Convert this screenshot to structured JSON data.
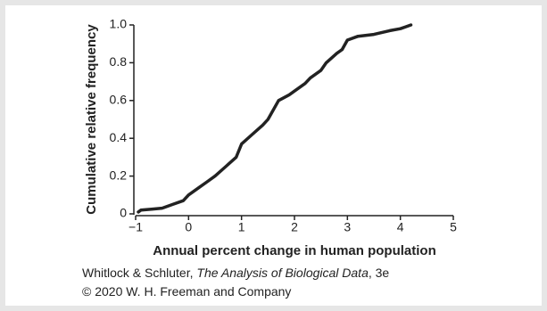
{
  "chart_data": {
    "type": "line",
    "ylabel": "Cumulative relative frequency",
    "xlabel": "Annual percent change in human population",
    "x": [
      -0.95,
      -0.9,
      -0.7,
      -0.5,
      -0.3,
      -0.1,
      0,
      0.2,
      0.35,
      0.5,
      0.7,
      0.9,
      1.0,
      1.2,
      1.4,
      1.5,
      1.7,
      1.9,
      2.0,
      2.2,
      2.3,
      2.5,
      2.6,
      2.8,
      2.9,
      3.0,
      3.2,
      3.5,
      3.8,
      4.0,
      4.1,
      4.2
    ],
    "values": [
      0.01,
      0.02,
      0.025,
      0.03,
      0.05,
      0.07,
      0.1,
      0.14,
      0.17,
      0.2,
      0.25,
      0.3,
      0.37,
      0.42,
      0.47,
      0.5,
      0.6,
      0.63,
      0.65,
      0.69,
      0.72,
      0.76,
      0.8,
      0.85,
      0.87,
      0.92,
      0.94,
      0.95,
      0.97,
      0.98,
      0.99,
      1.0
    ],
    "color": "#222222",
    "xlim": [
      -1,
      5
    ],
    "xticks": [
      {
        "value": -1,
        "label": "−1"
      },
      0,
      1,
      2,
      3,
      4,
      5
    ],
    "ylim": [
      0,
      1
    ],
    "yticks": [
      0,
      0.2,
      0.4,
      0.6,
      0.8,
      {
        "value": 1,
        "label": "1.0"
      }
    ]
  },
  "caption": {
    "authors": "Whitlock & Schluter, ",
    "book": "The Analysis of Biological Data",
    "edition": ", 3e",
    "copyright": "© 2020 W. H. Freeman and Company"
  }
}
